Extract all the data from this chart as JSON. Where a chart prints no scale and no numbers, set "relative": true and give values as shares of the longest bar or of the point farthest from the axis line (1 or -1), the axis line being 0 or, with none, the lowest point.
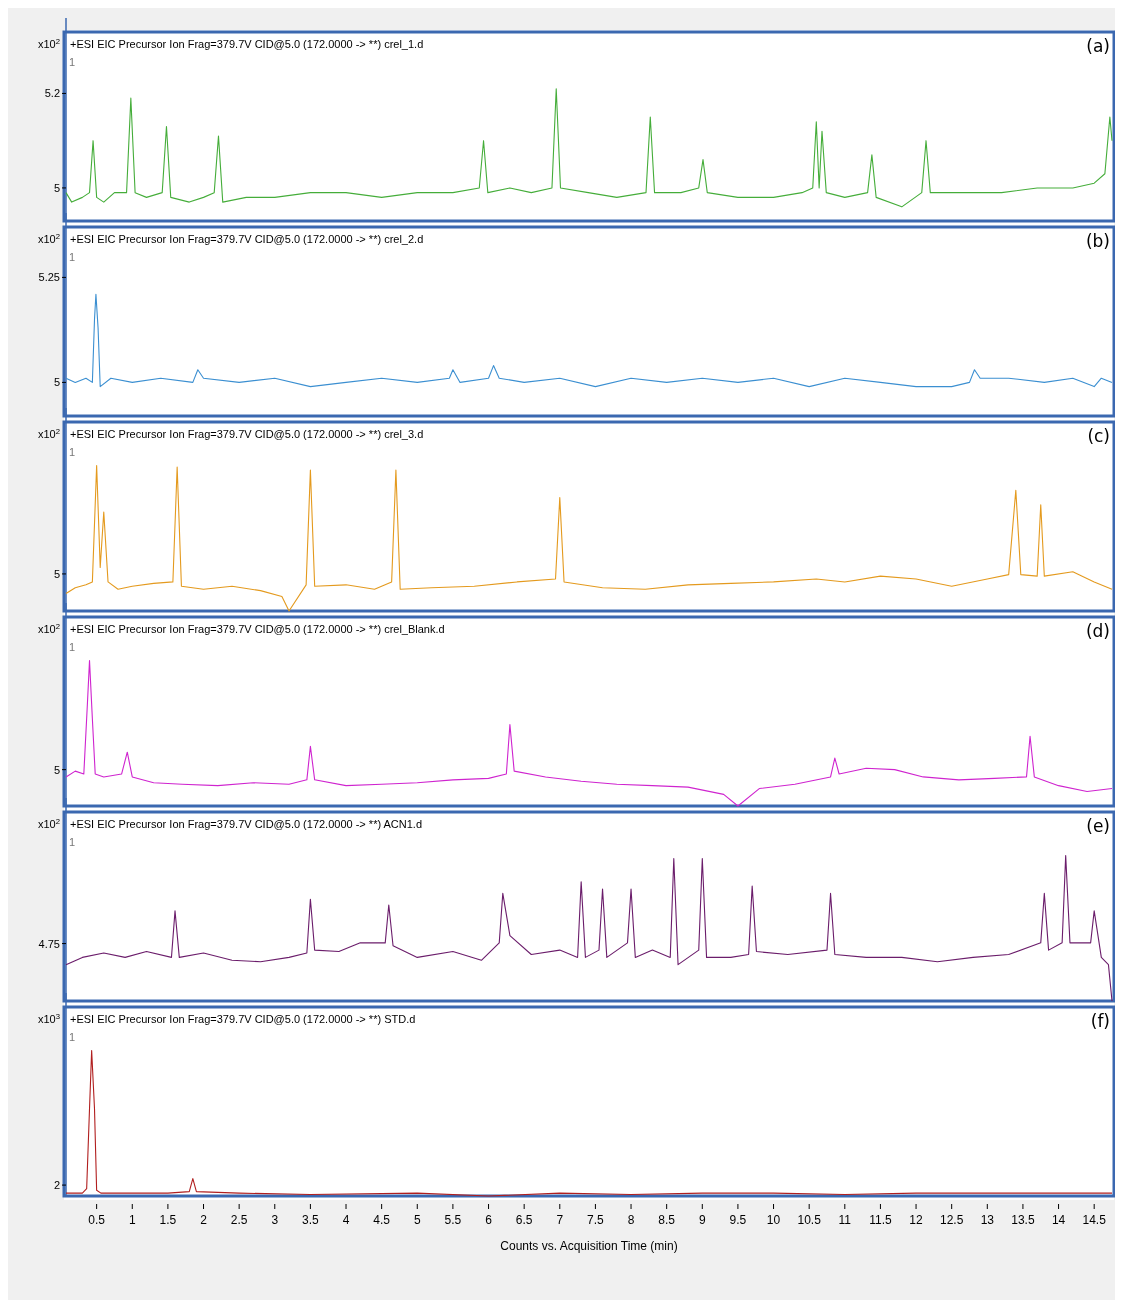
{
  "chart_data": [
    {
      "type": "line",
      "title": "+ESI EIC Precursor Ion Frag=379.7V CID@5.0 (172.0000 -> **) crel_1.d",
      "ylabel": "x10$^{2}$",
      "annotations": [
        "(a)",
        "1"
      ],
      "xlim": [
        0.07,
        14.75
      ],
      "ylim": [
        4.93,
        5.33
      ],
      "yticks": [
        5,
        5.2
      ],
      "tick_labels": "y",
      "grid": false,
      "series": [
        {
          "color": "#45ad3a",
          "x": [
            0.07,
            0.15,
            0.3,
            0.4,
            0.45,
            0.5,
            0.6,
            0.75,
            0.92,
            0.98,
            1.04,
            1.2,
            1.42,
            1.48,
            1.54,
            1.8,
            2.0,
            2.15,
            2.21,
            2.27,
            2.6,
            3.0,
            3.5,
            4.0,
            4.5,
            5.0,
            5.5,
            5.87,
            5.93,
            5.99,
            6.3,
            6.6,
            6.89,
            6.95,
            7.01,
            7.4,
            7.8,
            8.21,
            8.27,
            8.33,
            8.7,
            8.95,
            9.01,
            9.07,
            9.5,
            10.0,
            10.4,
            10.55,
            10.6,
            10.64,
            10.68,
            10.74,
            11.0,
            11.32,
            11.38,
            11.44,
            11.8,
            12.08,
            12.14,
            12.2,
            12.7,
            13.2,
            13.7,
            14.2,
            14.5,
            14.65,
            14.72,
            14.75
          ],
          "values": [
            4.99,
            4.97,
            4.98,
            4.99,
            5.1,
            4.98,
            4.97,
            4.99,
            4.99,
            5.19,
            4.99,
            4.98,
            4.99,
            5.13,
            4.98,
            4.97,
            4.98,
            4.99,
            5.11,
            4.97,
            4.98,
            4.98,
            4.99,
            4.99,
            4.98,
            4.99,
            4.99,
            5.0,
            5.1,
            4.99,
            5.0,
            4.99,
            5.0,
            5.21,
            5.0,
            4.99,
            4.98,
            4.99,
            5.15,
            4.99,
            4.99,
            5.0,
            5.06,
            4.99,
            4.98,
            4.98,
            4.99,
            5.0,
            5.14,
            5.0,
            5.12,
            4.99,
            4.98,
            4.99,
            5.07,
            4.98,
            4.96,
            4.99,
            5.1,
            4.99,
            4.99,
            4.99,
            5.0,
            5.0,
            5.01,
            5.03,
            5.15,
            5.1
          ]
        }
      ]
    },
    {
      "type": "line",
      "title": "+ESI EIC Precursor Ion Frag=379.7V CID@5.0 (172.0000 -> **) crel_2.d",
      "ylabel": "x10$^{2}$",
      "annotations": [
        "(b)",
        "1"
      ],
      "xlim": [
        0.07,
        14.75
      ],
      "ylim": [
        4.92,
        5.37
      ],
      "yticks": [
        5,
        5.25
      ],
      "tick_labels": "y",
      "grid": false,
      "series": [
        {
          "color": "#3b8fd1",
          "x": [
            0.07,
            0.2,
            0.35,
            0.44,
            0.47,
            0.49,
            0.52,
            0.55,
            0.7,
            1.0,
            1.4,
            1.85,
            1.92,
            2.0,
            2.5,
            3.0,
            3.5,
            4.0,
            4.5,
            5.0,
            5.45,
            5.5,
            5.6,
            6.0,
            6.07,
            6.15,
            6.5,
            7.0,
            7.5,
            8.0,
            8.5,
            9.0,
            9.5,
            10.0,
            10.5,
            11.0,
            11.5,
            12.0,
            12.5,
            12.75,
            12.82,
            12.9,
            13.3,
            13.8,
            14.2,
            14.5,
            14.6,
            14.75
          ],
          "values": [
            5.01,
            5.0,
            5.01,
            5.0,
            5.15,
            5.21,
            5.13,
            4.99,
            5.01,
            5.0,
            5.01,
            5.0,
            5.03,
            5.01,
            5.0,
            5.01,
            4.99,
            5.0,
            5.01,
            5.0,
            5.01,
            5.03,
            5.0,
            5.01,
            5.04,
            5.01,
            5.0,
            5.01,
            4.99,
            5.01,
            5.0,
            5.01,
            5.0,
            5.01,
            4.99,
            5.01,
            5.0,
            4.99,
            4.99,
            5.0,
            5.03,
            5.01,
            5.01,
            5.0,
            5.01,
            4.99,
            5.01,
            5.0
          ]
        }
      ]
    },
    {
      "type": "line",
      "title": "+ESI EIC Precursor Ion Frag=379.7V CID@5.0 (172.0000 -> **) crel_3.d",
      "ylabel": "x10$^{2}$",
      "annotations": [
        "(c)",
        "1",
        "5"
      ],
      "xlim": [
        0.07,
        14.75
      ],
      "relative": true,
      "tick_labels": "y",
      "grid": false,
      "series": [
        {
          "color": "#e49a1e",
          "x": [
            0.07,
            0.2,
            0.35,
            0.44,
            0.5,
            0.55,
            0.6,
            0.66,
            0.8,
            1.0,
            1.3,
            1.57,
            1.63,
            1.69,
            2.0,
            2.4,
            2.8,
            3.1,
            3.2,
            3.44,
            3.5,
            3.56,
            4.0,
            4.4,
            4.64,
            4.7,
            4.76,
            5.2,
            5.8,
            6.4,
            6.94,
            7.0,
            7.06,
            7.6,
            8.2,
            8.8,
            9.4,
            10.0,
            10.6,
            11.0,
            11.5,
            12.0,
            12.5,
            13.0,
            13.3,
            13.4,
            13.47,
            13.7,
            13.75,
            13.8,
            14.2,
            14.5,
            14.75
          ],
          "values": [
            0.12,
            0.16,
            0.18,
            0.2,
            1.0,
            0.3,
            0.68,
            0.2,
            0.15,
            0.17,
            0.19,
            0.2,
            0.99,
            0.17,
            0.15,
            0.17,
            0.14,
            0.1,
            0.0,
            0.18,
            0.97,
            0.17,
            0.18,
            0.15,
            0.2,
            0.97,
            0.15,
            0.16,
            0.17,
            0.2,
            0.22,
            0.78,
            0.2,
            0.16,
            0.15,
            0.18,
            0.19,
            0.2,
            0.22,
            0.2,
            0.24,
            0.22,
            0.17,
            0.22,
            0.25,
            0.83,
            0.25,
            0.24,
            0.73,
            0.24,
            0.27,
            0.2,
            0.15
          ]
        }
      ]
    },
    {
      "type": "line",
      "title": "+ESI EIC Precursor Ion Frag=379.7V CID@5.0 (172.0000 -> **) crel_Blank.d",
      "ylabel": "x10$^{2}$",
      "annotations": [
        "(d)",
        "1",
        "5"
      ],
      "xlim": [
        0.07,
        14.75
      ],
      "relative": true,
      "tick_labels": "y",
      "grid": false,
      "series": [
        {
          "color": "#cf24cf",
          "x": [
            0.07,
            0.2,
            0.32,
            0.37,
            0.4,
            0.44,
            0.48,
            0.6,
            0.85,
            0.93,
            1.0,
            1.3,
            1.7,
            2.2,
            2.7,
            3.2,
            3.45,
            3.5,
            3.56,
            4.0,
            4.5,
            5.0,
            5.5,
            6.0,
            6.25,
            6.3,
            6.36,
            6.8,
            7.3,
            7.8,
            8.3,
            8.8,
            9.3,
            9.5,
            9.8,
            10.3,
            10.8,
            10.86,
            10.92,
            11.3,
            11.7,
            12.1,
            12.6,
            13.1,
            13.55,
            13.6,
            13.66,
            14.0,
            14.4,
            14.75
          ],
          "values": [
            0.2,
            0.24,
            0.22,
            0.7,
            1.0,
            0.6,
            0.22,
            0.2,
            0.22,
            0.37,
            0.2,
            0.16,
            0.15,
            0.14,
            0.16,
            0.15,
            0.18,
            0.41,
            0.18,
            0.14,
            0.15,
            0.16,
            0.18,
            0.19,
            0.22,
            0.56,
            0.24,
            0.2,
            0.17,
            0.15,
            0.14,
            0.13,
            0.08,
            0.0,
            0.12,
            0.15,
            0.2,
            0.33,
            0.22,
            0.26,
            0.25,
            0.2,
            0.18,
            0.19,
            0.2,
            0.48,
            0.2,
            0.14,
            0.1,
            0.12
          ]
        }
      ]
    },
    {
      "type": "line",
      "title": "+ESI EIC Precursor Ion Frag=379.7V CID@5.0 (172.0000 -> **) ACN1.d",
      "ylabel": "x10$^{2}$",
      "annotations": [
        "(e)",
        "1",
        "4.75"
      ],
      "xlim": [
        0.07,
        14.75
      ],
      "relative": true,
      "tick_labels": "y",
      "grid": false,
      "series": [
        {
          "color": "#6b1d6b",
          "x": [
            0.07,
            0.3,
            0.6,
            0.9,
            1.2,
            1.55,
            1.6,
            1.66,
            2.0,
            2.4,
            2.8,
            3.2,
            3.45,
            3.5,
            3.56,
            3.9,
            4.2,
            4.55,
            4.6,
            4.66,
            5.0,
            5.5,
            5.9,
            6.15,
            6.2,
            6.3,
            6.6,
            7.0,
            7.25,
            7.3,
            7.36,
            7.55,
            7.6,
            7.66,
            7.95,
            8.0,
            8.06,
            8.3,
            8.55,
            8.6,
            8.66,
            8.95,
            9.0,
            9.06,
            9.4,
            9.65,
            9.7,
            9.76,
            10.2,
            10.75,
            10.8,
            10.86,
            11.3,
            11.8,
            12.3,
            12.8,
            13.3,
            13.75,
            13.8,
            13.86,
            14.05,
            14.1,
            14.16,
            14.45,
            14.5,
            14.6,
            14.7,
            14.75
          ],
          "values": [
            0.25,
            0.3,
            0.33,
            0.3,
            0.34,
            0.3,
            0.62,
            0.3,
            0.33,
            0.28,
            0.27,
            0.3,
            0.33,
            0.7,
            0.35,
            0.34,
            0.4,
            0.4,
            0.66,
            0.38,
            0.3,
            0.34,
            0.28,
            0.4,
            0.74,
            0.45,
            0.32,
            0.35,
            0.3,
            0.82,
            0.3,
            0.35,
            0.77,
            0.3,
            0.4,
            0.77,
            0.3,
            0.35,
            0.3,
            0.98,
            0.25,
            0.35,
            0.98,
            0.3,
            0.3,
            0.32,
            0.79,
            0.34,
            0.32,
            0.35,
            0.74,
            0.32,
            0.3,
            0.3,
            0.27,
            0.3,
            0.32,
            0.4,
            0.74,
            0.35,
            0.4,
            1.0,
            0.4,
            0.4,
            0.62,
            0.3,
            0.25,
            0.0
          ]
        }
      ]
    },
    {
      "type": "line",
      "title": "+ESI EIC Precursor Ion Frag=379.7V CID@5.0 (172.0000 -> **) STD.d",
      "ylabel": "x10$^{3}$",
      "xlabel": "Counts vs. Acquisition Time (min)",
      "annotations": [
        "(f)",
        "1",
        "2"
      ],
      "xlim": [
        0.07,
        14.75
      ],
      "xticks": [
        0.5,
        1,
        1.5,
        2,
        2.5,
        3,
        3.5,
        4,
        4.5,
        5,
        5.5,
        6,
        6.5,
        7,
        7.5,
        8,
        8.5,
        9,
        9.5,
        10,
        10.5,
        11,
        11.5,
        12,
        12.5,
        13,
        13.5,
        14,
        14.5
      ],
      "relative": true,
      "grid": false,
      "series": [
        {
          "color": "#b11f1f",
          "x": [
            0.07,
            0.3,
            0.36,
            0.4,
            0.43,
            0.47,
            0.5,
            0.56,
            1.0,
            1.5,
            1.8,
            1.85,
            1.9,
            2.5,
            3.5,
            5,
            6,
            7,
            8,
            9,
            10,
            11,
            12,
            13,
            14,
            14.75
          ],
          "values": [
            0.02,
            0.02,
            0.05,
            0.6,
            1.0,
            0.6,
            0.04,
            0.02,
            0.02,
            0.02,
            0.03,
            0.12,
            0.03,
            0.02,
            0.01,
            0.02,
            0.0,
            0.02,
            0.01,
            0.02,
            0.02,
            0.01,
            0.02,
            0.02,
            0.02,
            0.02
          ]
        }
      ]
    }
  ]
}
